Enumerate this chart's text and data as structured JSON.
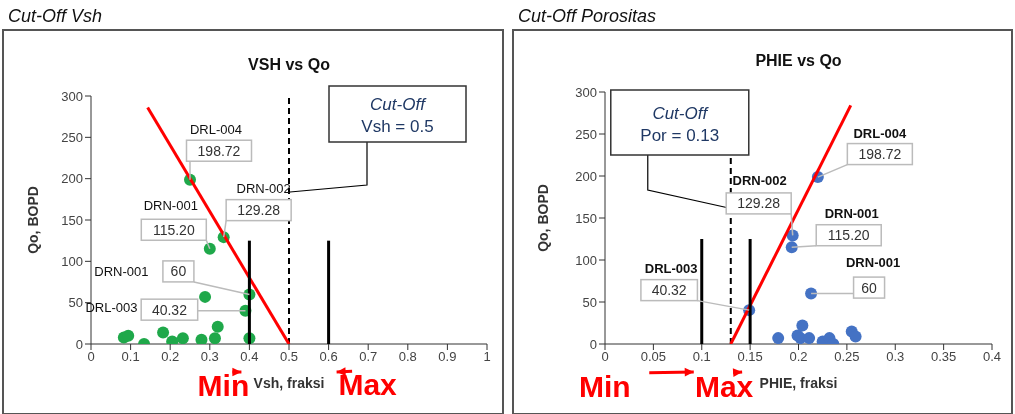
{
  "chart_data": [
    {
      "type": "scatter",
      "title": "Cut-Off Vsh",
      "subtitle": "VSH vs Qo",
      "xlabel": "Vsh, fraksi",
      "ylabel": "Qo, BOPD",
      "xlim": [
        0,
        1
      ],
      "ylim": [
        0,
        300
      ],
      "xticks": [
        0,
        0.1,
        0.2,
        0.3,
        0.4,
        0.5,
        0.6,
        0.7,
        0.8,
        0.9,
        1
      ],
      "yticks": [
        0,
        50,
        100,
        150,
        200,
        250,
        300
      ],
      "series": [
        {
          "type": "scatter",
          "color": "#1fa84a",
          "x": [
            0.083,
            0.094,
            0.134,
            0.182,
            0.205,
            0.232,
            0.279,
            0.288,
            0.313,
            0.32,
            0.3,
            0.25,
            0.335,
            0.4,
            0.39,
            0.4
          ],
          "values": [
            8,
            10,
            0,
            14,
            3,
            7,
            5,
            57,
            7,
            21,
            115.2,
            198.72,
            129.28,
            60,
            40.32,
            7
          ],
          "value_labels": [
            null,
            null,
            null,
            null,
            null,
            null,
            null,
            null,
            null,
            null,
            "115.20",
            "198.72",
            "129.28",
            "60",
            "40.32",
            null
          ]
        },
        {
          "type": "line",
          "color": "#ff0000",
          "x": [
            0.143,
            0.5
          ],
          "values": [
            286,
            0
          ]
        },
        {
          "type": "line",
          "color": "#000000",
          "x": [
            0.4,
            0.4
          ],
          "values": [
            0,
            125
          ]
        },
        {
          "type": "line",
          "color": "#000000",
          "x": [
            0.6,
            0.6
          ],
          "values": [
            0,
            125
          ]
        }
      ],
      "ref_lines": [
        {
          "axis": "x",
          "value": 0.5,
          "label": "Cut-Off\nVsh = 0.5",
          "line_style": "dashed",
          "color": "#000000"
        }
      ],
      "annotations": [
        "DRN-001",
        "DRL-004",
        "DRN-002",
        "DRN-001",
        "DRL-003",
        {
          "text": "Min",
          "x": 0.4,
          "y": 0
        },
        {
          "text": "Max",
          "x": 0.6,
          "y": 0
        }
      ]
    },
    {
      "type": "scatter",
      "title": "Cut-Off Porositas",
      "subtitle": "PHIE vs Qo",
      "xlabel": "PHIE, fraksi",
      "ylabel": "Qo, BOPD",
      "xlim": [
        0,
        0.4
      ],
      "ylim": [
        0,
        300
      ],
      "xticks": [
        0,
        0.05,
        0.1,
        0.15,
        0.2,
        0.25,
        0.3,
        0.35,
        0.4
      ],
      "yticks": [
        0,
        50,
        100,
        150,
        200,
        250,
        300
      ],
      "series": [
        {
          "type": "scatter",
          "color": "#4472c4",
          "x": [
            0.179,
            0.204,
            0.199,
            0.202,
            0.211,
            0.225,
            0.232,
            0.236,
            0.255,
            0.259,
            0.193,
            0.22,
            0.194,
            0.213,
            0.149
          ],
          "values": [
            7,
            22,
            10,
            7,
            7,
            3,
            7,
            0,
            15,
            9,
            115.2,
            198.72,
            129.28,
            60,
            40.32
          ],
          "value_labels": [
            null,
            null,
            null,
            null,
            null,
            null,
            null,
            null,
            null,
            null,
            "115.20",
            "198.72",
            "129.28",
            "60",
            "40.32"
          ]
        },
        {
          "type": "line",
          "color": "#ff0000",
          "x": [
            0.13,
            0.254
          ],
          "values": [
            0,
            284
          ]
        },
        {
          "type": "line",
          "color": "#000000",
          "x": [
            0.1,
            0.1
          ],
          "values": [
            0,
            125
          ]
        },
        {
          "type": "line",
          "color": "#000000",
          "x": [
            0.15,
            0.15
          ],
          "values": [
            0,
            125
          ]
        }
      ],
      "ref_lines": [
        {
          "axis": "x",
          "value": 0.13,
          "label": "Cut-Off\nPor = 0.13",
          "line_style": "dashed",
          "color": "#000000"
        }
      ],
      "annotations": [
        "DRN-001",
        "DRL-004",
        "DRN-002",
        "DRN-001",
        "DRL-003",
        {
          "text": "Min",
          "x": 0.1,
          "y": 0
        },
        {
          "text": "Max",
          "x": 0.15,
          "y": 0
        }
      ]
    }
  ]
}
